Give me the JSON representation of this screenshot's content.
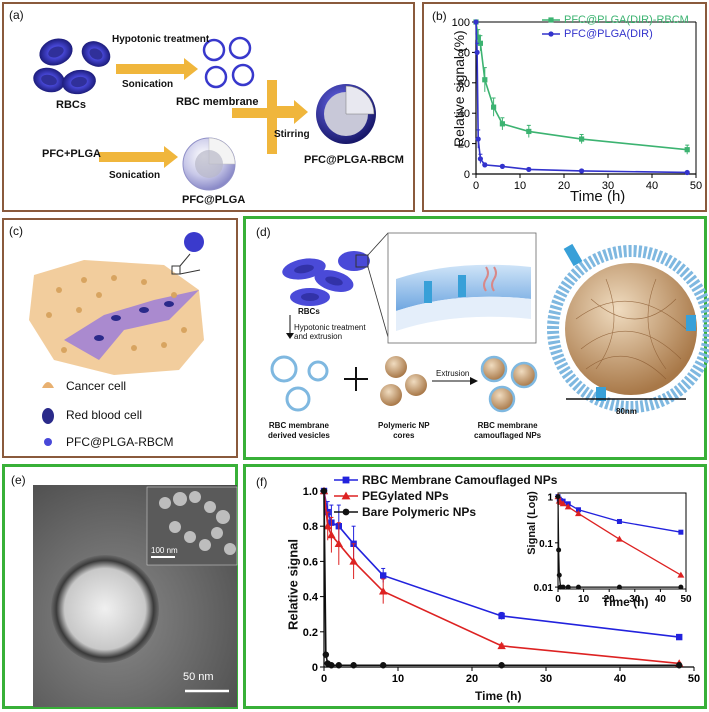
{
  "panel_a": {
    "label": "(a)",
    "rbcs": "RBCs",
    "hypotonic_treatment": "Hypotonic treatment",
    "sonication1": "Sonication",
    "rbc_membrane": "RBC membrane",
    "stirring": "Stirring",
    "pfc_plga": "PFC+PLGA",
    "sonication2": "Sonication",
    "pfc_at_plga": "PFC@PLGA",
    "product": "PFC@PLGA-RBCM"
  },
  "panel_b": {
    "label": "(b)",
    "chart_data": {
      "type": "line",
      "xlabel": "Time (h)",
      "ylabel": "Relative signal (%)",
      "xlim": [
        0,
        50
      ],
      "ylim": [
        0,
        100
      ],
      "xticks": [
        "0",
        "10",
        "20",
        "30",
        "40",
        "50"
      ],
      "yticks": [
        "0",
        "20",
        "40",
        "60",
        "80",
        "100"
      ],
      "legend_position": "top-right",
      "series": [
        {
          "name": "PFC@PLGA(DIR)-RBCM",
          "color": "#3cb371",
          "marker": "square",
          "x": [
            0,
            0.5,
            1,
            2,
            4,
            6,
            12,
            24,
            48
          ],
          "y": [
            100,
            90,
            86,
            62,
            44,
            33,
            28,
            23,
            16
          ],
          "err": [
            0,
            5,
            5,
            8,
            6,
            4,
            4,
            3,
            3
          ]
        },
        {
          "name": "PFC@PLGA(DIR)",
          "color": "#3333cc",
          "marker": "circle",
          "x": [
            0,
            0.25,
            0.5,
            1,
            2,
            6,
            12,
            24,
            48
          ],
          "y": [
            100,
            80,
            23,
            10,
            6,
            5,
            3,
            2,
            1
          ],
          "err": [
            0,
            6,
            6,
            3,
            1,
            1,
            1,
            1,
            0.5
          ]
        }
      ]
    }
  },
  "panel_c": {
    "label": "(c)",
    "legend": [
      "Cancer cell",
      "Red blood cell",
      "PFC@PLGA-RBCM"
    ]
  },
  "panel_d": {
    "label": "(d)",
    "rbcs": "RBCs",
    "step": "Hypotonic treatment\nand extrusion",
    "extrusion": "Extrusion",
    "vesicles": "RBC membrane\nderived vesicles",
    "cores": "Polymeric NP\ncores",
    "camouflaged": "RBC membrane\ncamouflaged NPs",
    "scale": "80nm"
  },
  "panel_e": {
    "label": "(e)",
    "inset_scale": "100 nm",
    "scale": "50 nm"
  },
  "panel_f": {
    "label": "(f)",
    "chart_data": {
      "type": "line",
      "xlabel": "Time (h)",
      "ylabel": "Relative signal",
      "xlim": [
        0,
        50
      ],
      "ylim": [
        0,
        1.0
      ],
      "xticks": [
        "0",
        "10",
        "20",
        "30",
        "40",
        "50"
      ],
      "yticks": [
        "0",
        "0.2",
        "0.4",
        "0.6",
        "0.8",
        "1.0"
      ],
      "legend_position": "top-left",
      "series": [
        {
          "name": "RBC Membrane Camouflaged NPs",
          "color": "#2222dd",
          "marker": "square",
          "x": [
            0,
            0.5,
            1,
            2,
            4,
            8,
            24,
            48
          ],
          "y": [
            1.0,
            0.88,
            0.82,
            0.8,
            0.7,
            0.52,
            0.29,
            0.17
          ],
          "err": [
            0,
            0.06,
            0.1,
            0.12,
            0.1,
            0.04,
            0.02,
            0.01
          ]
        },
        {
          "name": "PEGylated NPs",
          "color": "#dd2222",
          "marker": "triangle",
          "x": [
            0,
            0.5,
            1,
            2,
            4,
            8,
            24,
            48
          ],
          "y": [
            1.0,
            0.8,
            0.75,
            0.7,
            0.6,
            0.43,
            0.12,
            0.02
          ],
          "err": [
            0,
            0.08,
            0.1,
            0.12,
            0.1,
            0.07,
            0.01,
            0.005
          ]
        },
        {
          "name": "Bare Polymeric NPs",
          "color": "#111111",
          "marker": "circle",
          "x": [
            0,
            0.25,
            0.5,
            1,
            2,
            4,
            8,
            24,
            48
          ],
          "y": [
            1.0,
            0.07,
            0.02,
            0.01,
            0.01,
            0.01,
            0.01,
            0.01,
            0.01
          ],
          "err": [
            0,
            0.01,
            0,
            0,
            0,
            0,
            0,
            0,
            0
          ]
        }
      ],
      "inset": {
        "ylabel": "Signal (Log)",
        "xlabel": "Time (h)",
        "xticks": [
          "0",
          "10",
          "20",
          "30",
          "40",
          "50"
        ],
        "yticks": [
          "0.01",
          "0.1",
          "1"
        ]
      }
    }
  }
}
